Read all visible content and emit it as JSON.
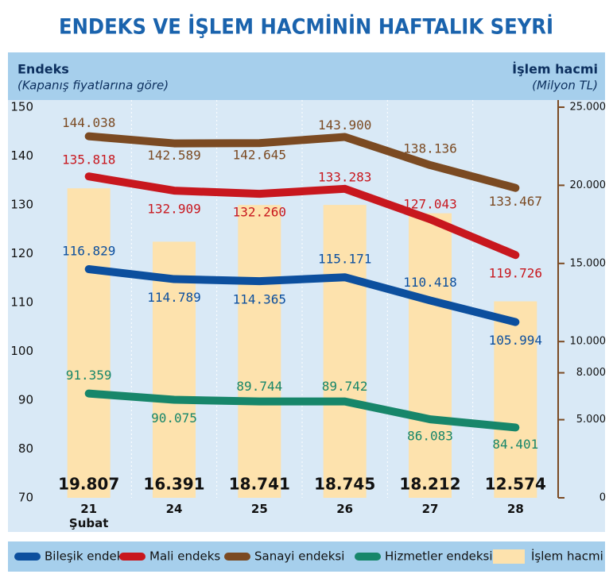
{
  "chart_data": {
    "type": "combo",
    "title": "ENDEKS VE İŞLEM HACMİNİN HAFTALIK SEYRİ",
    "y_label": "Endeks",
    "y_sublabel": "(Kapanış fiyatlarına göre)",
    "y2_label": "İşlem hacmi",
    "y2_sublabel": "(Milyon TL)",
    "categories": [
      "21 Şubat",
      "24",
      "25",
      "26",
      "27",
      "28"
    ],
    "ylim": [
      70,
      150
    ],
    "yticks": [
      70,
      80,
      90,
      100,
      110,
      120,
      130,
      140,
      150
    ],
    "y2lim": [
      0,
      25000
    ],
    "y2ticks": [
      0,
      {
        "value": 5000,
        "label": "5.000"
      },
      {
        "value": 8000,
        "label": "8.000"
      },
      {
        "value": 10000,
        "label": "10.000"
      },
      {
        "value": 15000,
        "label": "15.000"
      },
      {
        "value": 20000,
        "label": "20.000"
      },
      {
        "value": 25000,
        "label": "25.000"
      }
    ],
    "series": [
      {
        "name": "Bileşik endeks",
        "type": "line",
        "color": "#0c4f9e",
        "values": [
          116.829,
          114.789,
          114.365,
          115.171,
          110.418,
          105.994
        ],
        "value_labels": [
          "116.829",
          "114.789",
          "114.365",
          "115.171",
          "110.418",
          "105.994"
        ]
      },
      {
        "name": "Mali endeks",
        "type": "line",
        "color": "#c8171e",
        "values": [
          135.818,
          132.909,
          132.26,
          133.283,
          127.043,
          119.726
        ],
        "value_labels": [
          "135.818",
          "132.909",
          "132.260",
          "133.283",
          "127.043",
          "119.726"
        ]
      },
      {
        "name": "Sanayi endeksi",
        "type": "line",
        "color": "#7b4a22",
        "values": [
          144.038,
          142.589,
          142.645,
          143.9,
          138.136,
          133.467
        ],
        "value_labels": [
          "144.038",
          "142.589",
          "142.645",
          "143.900",
          "138.136",
          "133.467"
        ]
      },
      {
        "name": "Hizmetler endeksi",
        "type": "line",
        "color": "#17866a",
        "values": [
          91.359,
          90.075,
          89.744,
          89.742,
          86.083,
          84.401
        ],
        "value_labels": [
          "91.359",
          "90.075",
          "89.744",
          "89.742",
          "86.083",
          "84.401"
        ]
      },
      {
        "name": "İşlem hacmi",
        "type": "bar",
        "axis": "y2",
        "color": "#fde2ad",
        "values": [
          19807,
          16391,
          18741,
          18745,
          18212,
          12574
        ],
        "value_labels": [
          "19.807",
          "16.391",
          "18.741",
          "18.745",
          "18.212",
          "12.574"
        ]
      }
    ]
  }
}
